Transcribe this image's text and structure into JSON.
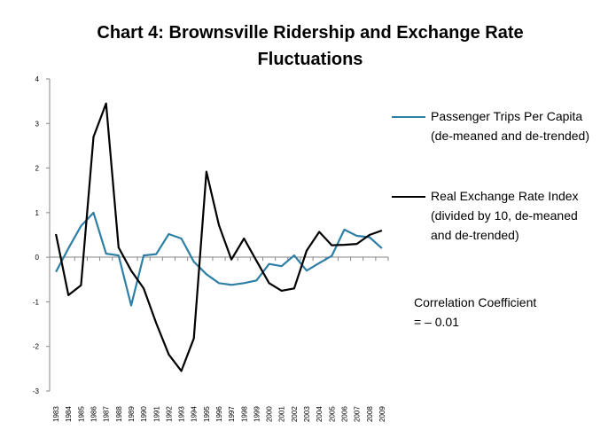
{
  "chart_data": {
    "type": "line",
    "title_lines": [
      "Chart 4: Brownsville Ridership and Exchange Rate",
      "Fluctuations"
    ],
    "x": [
      "1983",
      "1984",
      "1985",
      "1986",
      "1987",
      "1988",
      "1989",
      "1990",
      "1991",
      "1992",
      "1993",
      "1994",
      "1995",
      "1996",
      "1997",
      "1998",
      "1999",
      "2000",
      "2001",
      "2002",
      "2003",
      "2004",
      "2005",
      "2006",
      "2007",
      "2008",
      "2009"
    ],
    "ylim": [
      -3,
      4
    ],
    "yticks": [
      "4",
      "3",
      "2",
      "1",
      "0",
      "-1",
      "-2",
      "-3"
    ],
    "grid": false,
    "legend_position": "right",
    "series": [
      {
        "name": "Passenger Trips Per Capita (de-meaned and de-trended)",
        "color": "#2e7fa6",
        "values": [
          -0.33,
          0.2,
          0.7,
          1.0,
          0.08,
          0.04,
          -1.08,
          0.04,
          0.07,
          0.52,
          0.42,
          -0.1,
          -0.38,
          -0.58,
          -0.62,
          -0.58,
          -0.52,
          -0.15,
          -0.2,
          0.04,
          -0.3,
          -0.13,
          0.03,
          0.62,
          0.48,
          0.45,
          0.2
        ]
      },
      {
        "name": "Real Exchange Rate Index (divided by 10, de-meaned and de-trended)",
        "color": "#000000",
        "values": [
          0.52,
          -0.85,
          -0.63,
          2.7,
          3.45,
          0.22,
          -0.3,
          -0.7,
          -1.48,
          -2.18,
          -2.55,
          -1.82,
          1.92,
          0.72,
          -0.05,
          0.42,
          -0.08,
          -0.58,
          -0.75,
          -0.7,
          0.15,
          0.57,
          0.27,
          0.28,
          0.3,
          0.5,
          0.6
        ]
      }
    ],
    "annotation_lines": [
      "Correlation Coefficient",
      "= – 0.01"
    ]
  }
}
